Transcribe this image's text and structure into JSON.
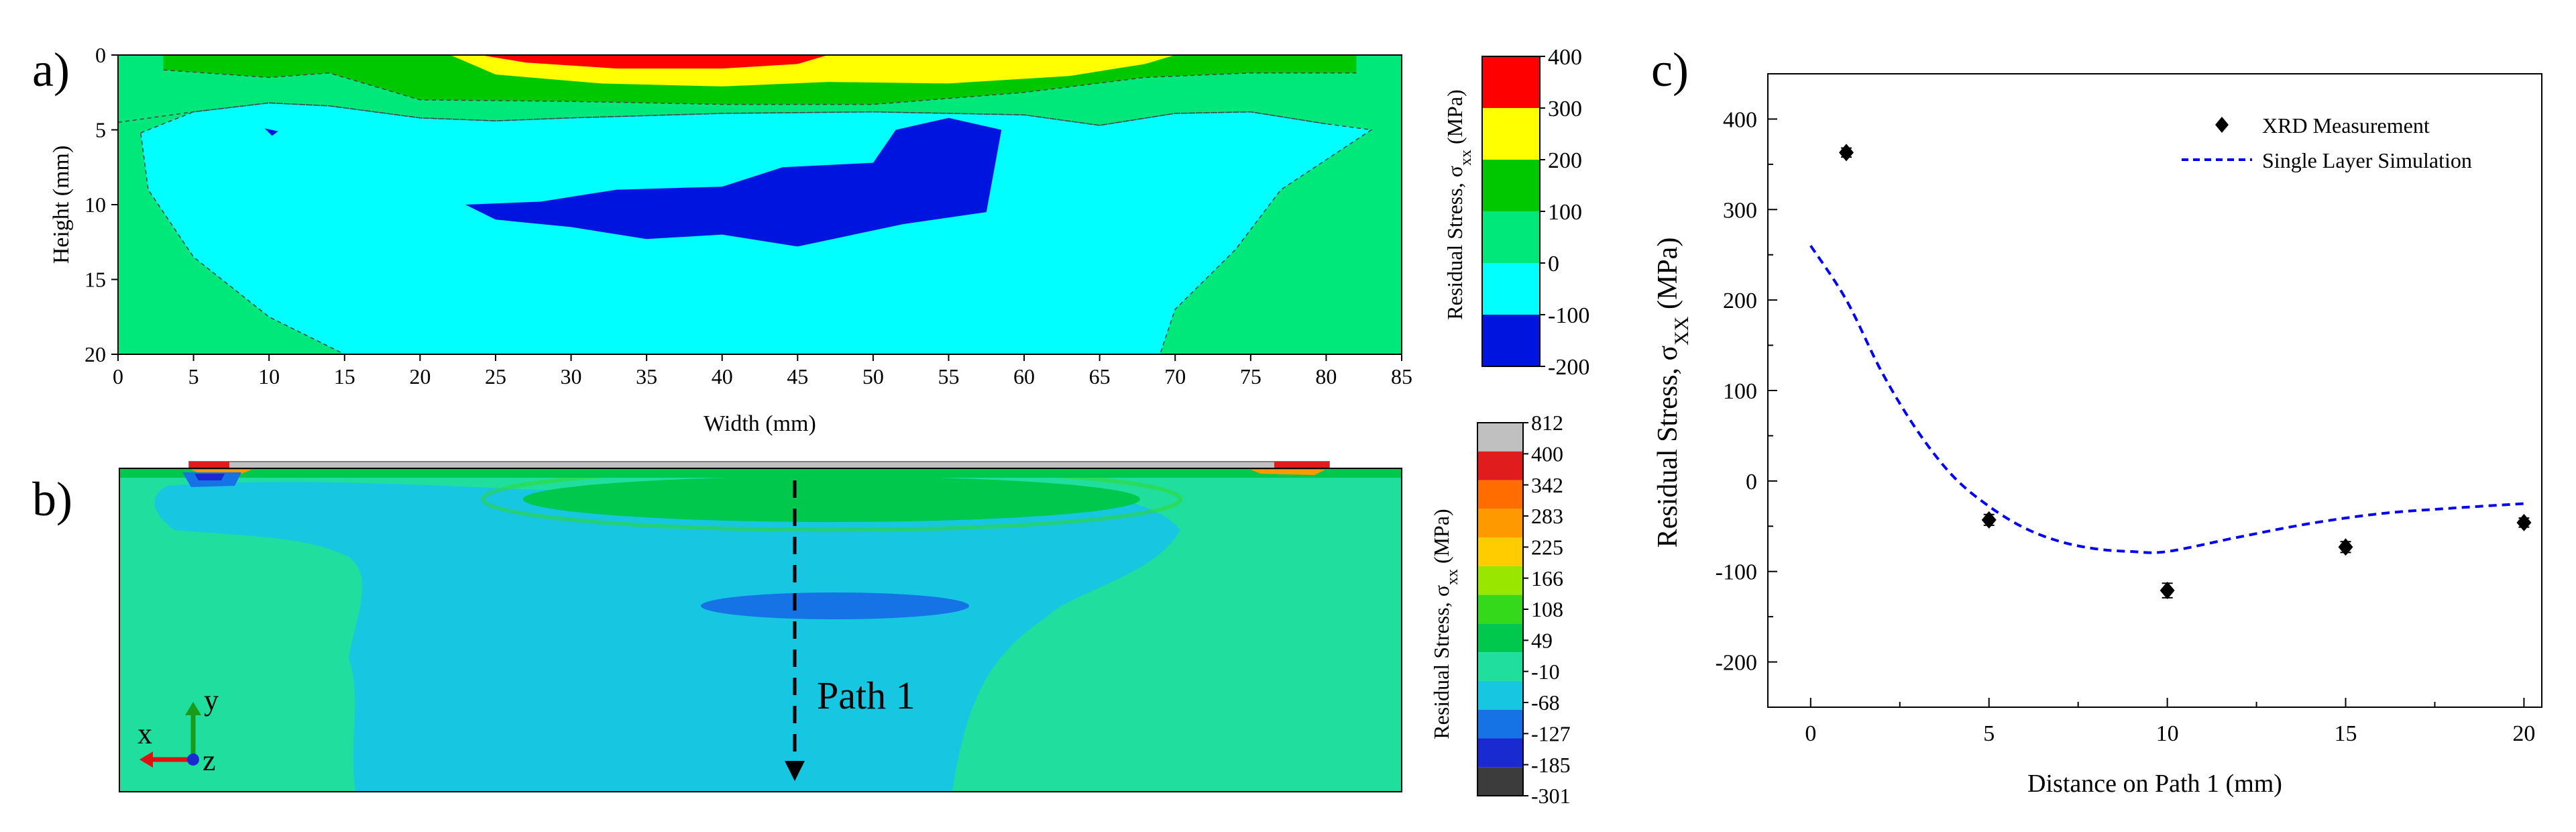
{
  "panels": {
    "a": {
      "label": "a)"
    },
    "b": {
      "label": "b)"
    },
    "c": {
      "label": "c)"
    }
  },
  "chart_data": [
    {
      "id": "a",
      "type": "heatmap",
      "title": "",
      "xlabel": "Width (mm)",
      "ylabel": "Height (mm)",
      "xlim": [
        0,
        85
      ],
      "ylim": [
        0,
        20
      ],
      "y_inverted": true,
      "xticks": [
        0,
        5,
        10,
        15,
        20,
        25,
        30,
        35,
        40,
        45,
        50,
        55,
        60,
        65,
        70,
        75,
        80,
        85
      ],
      "yticks": [
        0,
        5,
        10,
        15,
        20
      ],
      "colorbar": {
        "label_main": "Residual Stress, σ",
        "label_sub": "xx",
        "label_unit": " (MPa)",
        "ticks": [
          "400",
          "300",
          "200",
          "100",
          "0",
          "-100",
          "-200"
        ],
        "colors": [
          "#ff0000",
          "#ffff00",
          "#00c800",
          "#00e87a",
          "#00ffff",
          "#0014e0"
        ]
      },
      "regions": [
        {
          "name": "low",
          "color": "#0014e0",
          "points": [
            [
              23,
              10
            ],
            [
              28,
              9.8
            ],
            [
              33,
              9
            ],
            [
              40,
              8.8
            ],
            [
              44,
              7.5
            ],
            [
              50,
              7.2
            ],
            [
              51.5,
              5
            ],
            [
              55,
              4.2
            ],
            [
              58.5,
              5
            ],
            [
              57.5,
              10.5
            ],
            [
              52,
              11.3
            ],
            [
              45,
              12.8
            ],
            [
              40,
              12
            ],
            [
              35,
              12.3
            ],
            [
              30,
              11.5
            ],
            [
              25,
              11
            ]
          ]
        },
        {
          "name": "speck",
          "color": "#0014e0",
          "points": [
            [
              9.7,
              4.9
            ],
            [
              10.6,
              5.1
            ],
            [
              10.2,
              5.4
            ]
          ]
        },
        {
          "name": "mid-upper",
          "color": "#00c800",
          "points": [
            [
              3,
              0
            ],
            [
              82,
              0
            ],
            [
              82,
              1.2
            ],
            [
              75,
              1.2
            ],
            [
              68,
              1.5
            ],
            [
              60,
              2.5
            ],
            [
              50,
              3.3
            ],
            [
              40,
              3.3
            ],
            [
              30,
              3.1
            ],
            [
              20,
              3
            ],
            [
              14,
              1.2
            ],
            [
              10,
              1.5
            ],
            [
              3,
              1
            ]
          ]
        },
        {
          "name": "warm",
          "color": "#ffff00",
          "points": [
            [
              22,
              0
            ],
            [
              70,
              0
            ],
            [
              68,
              0.6
            ],
            [
              63,
              1.4
            ],
            [
              55,
              1.9
            ],
            [
              47,
              1.8
            ],
            [
              40,
              2.1
            ],
            [
              32,
              1.9
            ],
            [
              25,
              1.3
            ]
          ]
        },
        {
          "name": "hot",
          "color": "#ff0000",
          "points": [
            [
              24,
              0
            ],
            [
              47,
              0
            ],
            [
              45,
              0.6
            ],
            [
              40,
              0.9
            ],
            [
              33,
              0.9
            ],
            [
              27,
              0.5
            ]
          ]
        }
      ],
      "contour_lines": [
        [
          [
            0,
            4.5
          ],
          [
            5,
            3.8
          ],
          [
            10,
            3.2
          ],
          [
            14,
            3.4
          ],
          [
            20,
            4.2
          ],
          [
            25,
            4.4
          ],
          [
            30,
            4.2
          ],
          [
            40,
            3.9
          ],
          [
            50,
            3.8
          ],
          [
            60,
            4
          ],
          [
            65,
            4.7
          ],
          [
            70,
            3.9
          ],
          [
            75,
            3.8
          ],
          [
            80,
            4.6
          ]
        ],
        [
          [
            3,
            1
          ],
          [
            10,
            1.5
          ],
          [
            14,
            1.2
          ],
          [
            20,
            3
          ],
          [
            30,
            3.1
          ],
          [
            40,
            3.3
          ],
          [
            50,
            3.3
          ],
          [
            60,
            2.5
          ],
          [
            68,
            1.5
          ],
          [
            75,
            1.2
          ],
          [
            82,
            1.2
          ]
        ]
      ],
      "low_boundary": [
        [
          1.5,
          5.2
        ],
        [
          5,
          3.8
        ],
        [
          10,
          3.2
        ],
        [
          14,
          3.4
        ],
        [
          20,
          4.2
        ],
        [
          25,
          4.4
        ],
        [
          30,
          4.2
        ],
        [
          40,
          3.9
        ],
        [
          50,
          3.8
        ],
        [
          60,
          4
        ],
        [
          65,
          4.7
        ],
        [
          70,
          3.9
        ],
        [
          75,
          3.8
        ],
        [
          80,
          4.6
        ],
        [
          83,
          5
        ],
        [
          80,
          7
        ],
        [
          77,
          9
        ],
        [
          74,
          13
        ],
        [
          70,
          17
        ],
        [
          69,
          20
        ],
        [
          15,
          20
        ],
        [
          10,
          17.5
        ],
        [
          5,
          13.5
        ],
        [
          2,
          9
        ]
      ]
    },
    {
      "id": "b",
      "type": "heatmap",
      "title": "",
      "annotation": "Path 1",
      "axes_triad": {
        "x": "x",
        "y": "y",
        "z": "z"
      },
      "colorbar": {
        "label_main": "Residual Stress, σ",
        "label_sub": "xx",
        "label_unit": " (MPa)",
        "ticks": [
          "812",
          "400",
          "342",
          "283",
          "225",
          "166",
          "108",
          "49",
          "-10",
          "-68",
          "-127",
          "-185",
          "-301"
        ],
        "colors": [
          "#c0c0c0",
          "#e01c1c",
          "#ff6d00",
          "#ff9900",
          "#ffcc00",
          "#99e600",
          "#33d91a",
          "#00c84c",
          "#1fde9e",
          "#17c6e0",
          "#1673e6",
          "#1a2ad1",
          "#3c3c3c"
        ]
      }
    },
    {
      "id": "c",
      "type": "scatter",
      "title": "",
      "xlabel": "Distance on Path 1 (mm)",
      "ylabel_main": "Residual Stress, σ",
      "ylabel_sub": "XX",
      "ylabel_unit": " (MPa)",
      "xlim": [
        -1.2,
        20.5
      ],
      "ylim": [
        -250,
        450
      ],
      "xticks": [
        0,
        5,
        10,
        15,
        20
      ],
      "yticks": [
        -200,
        -100,
        0,
        100,
        200,
        300,
        400
      ],
      "legend_position": "top-right",
      "series": [
        {
          "name": "XRD Measurement",
          "kind": "markers",
          "color": "#000000",
          "x": [
            1,
            5,
            10,
            15,
            20
          ],
          "y": [
            363,
            -43,
            -121,
            -73,
            -46
          ],
          "err": [
            5,
            6,
            8,
            6,
            5
          ]
        },
        {
          "name": "Single Layer Simulation",
          "kind": "dashed-line",
          "color": "#0000ff",
          "x": [
            0,
            1,
            2,
            3,
            4,
            5,
            6,
            7,
            8,
            9,
            10,
            12,
            14,
            16,
            18,
            20
          ],
          "y": [
            260,
            200,
            120,
            55,
            5,
            -28,
            -52,
            -67,
            -75,
            -78,
            -78,
            -62,
            -47,
            -36,
            -30,
            -25
          ]
        }
      ]
    }
  ]
}
